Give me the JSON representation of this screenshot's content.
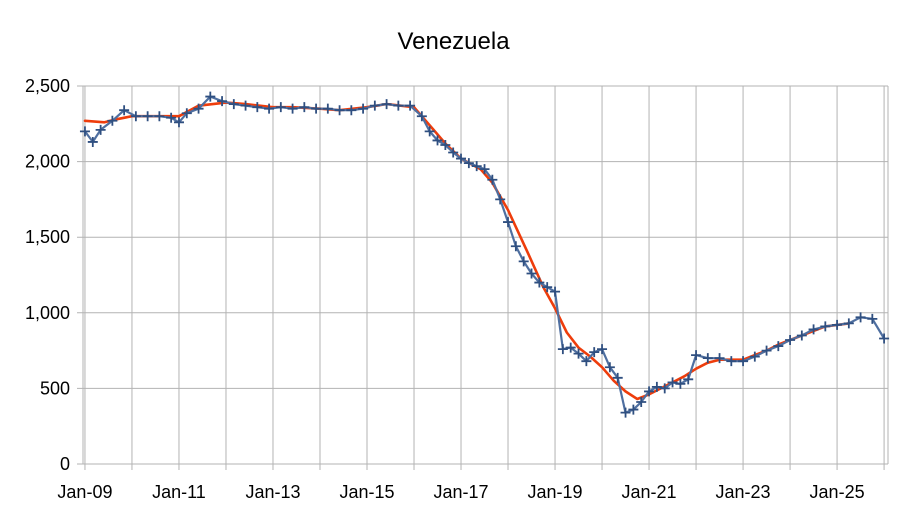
{
  "chart_data": {
    "type": "line",
    "title": "Venezuela",
    "xlabel": "",
    "ylabel": "",
    "ylim": [
      0,
      2500
    ],
    "xlim": [
      "2009-01",
      "2026-02"
    ],
    "grid": true,
    "legend": "none",
    "y_ticks": [
      {
        "value": 0,
        "label": "0"
      },
      {
        "value": 500,
        "label": "500"
      },
      {
        "value": 1000,
        "label": "1,000"
      },
      {
        "value": 1500,
        "label": "1,500"
      },
      {
        "value": 2000,
        "label": "2,000"
      },
      {
        "value": 2500,
        "label": "2,500"
      }
    ],
    "x_ticks": [
      {
        "value": "2009-01",
        "label": "Jan-09"
      },
      {
        "value": "2011-01",
        "label": "Jan-11"
      },
      {
        "value": "2013-01",
        "label": "Jan-13"
      },
      {
        "value": "2015-01",
        "label": "Jan-15"
      },
      {
        "value": "2017-01",
        "label": "Jan-17"
      },
      {
        "value": "2019-01",
        "label": "Jan-19"
      },
      {
        "value": "2021-01",
        "label": "Jan-21"
      },
      {
        "value": "2023-01",
        "label": "Jan-23"
      },
      {
        "value": "2025-01",
        "label": "Jan-25"
      }
    ],
    "series": [
      {
        "color": "#4f6fa0",
        "marker": "plus",
        "points": [
          [
            "2009-01",
            2200
          ],
          [
            "2009-03",
            2130
          ],
          [
            "2009-05",
            2210
          ],
          [
            "2009-08",
            2270
          ],
          [
            "2009-11",
            2340
          ],
          [
            "2010-02",
            2300
          ],
          [
            "2010-05",
            2300
          ],
          [
            "2010-08",
            2300
          ],
          [
            "2010-11",
            2290
          ],
          [
            "2011-01",
            2260
          ],
          [
            "2011-03",
            2320
          ],
          [
            "2011-06",
            2350
          ],
          [
            "2011-09",
            2430
          ],
          [
            "2011-12",
            2400
          ],
          [
            "2012-03",
            2380
          ],
          [
            "2012-06",
            2370
          ],
          [
            "2012-09",
            2360
          ],
          [
            "2012-12",
            2350
          ],
          [
            "2013-03",
            2360
          ],
          [
            "2013-06",
            2350
          ],
          [
            "2013-09",
            2360
          ],
          [
            "2013-12",
            2350
          ],
          [
            "2014-03",
            2350
          ],
          [
            "2014-06",
            2340
          ],
          [
            "2014-09",
            2340
          ],
          [
            "2014-12",
            2350
          ],
          [
            "2015-03",
            2370
          ],
          [
            "2015-06",
            2380
          ],
          [
            "2015-09",
            2370
          ],
          [
            "2015-12",
            2370
          ],
          [
            "2016-03",
            2300
          ],
          [
            "2016-05",
            2200
          ],
          [
            "2016-07",
            2140
          ],
          [
            "2016-09",
            2110
          ],
          [
            "2016-11",
            2060
          ],
          [
            "2017-01",
            2020
          ],
          [
            "2017-03",
            1990
          ],
          [
            "2017-05",
            1970
          ],
          [
            "2017-07",
            1950
          ],
          [
            "2017-09",
            1880
          ],
          [
            "2017-11",
            1750
          ],
          [
            "2018-01",
            1600
          ],
          [
            "2018-03",
            1440
          ],
          [
            "2018-05",
            1340
          ],
          [
            "2018-07",
            1260
          ],
          [
            "2018-09",
            1200
          ],
          [
            "2018-11",
            1170
          ],
          [
            "2019-01",
            1140
          ],
          [
            "2019-03",
            760
          ],
          [
            "2019-05",
            770
          ],
          [
            "2019-07",
            730
          ],
          [
            "2019-09",
            680
          ],
          [
            "2019-11",
            740
          ],
          [
            "2020-01",
            760
          ],
          [
            "2020-03",
            640
          ],
          [
            "2020-05",
            570
          ],
          [
            "2020-07",
            340
          ],
          [
            "2020-09",
            360
          ],
          [
            "2020-11",
            410
          ],
          [
            "2021-01",
            480
          ],
          [
            "2021-03",
            510
          ],
          [
            "2021-05",
            500
          ],
          [
            "2021-07",
            540
          ],
          [
            "2021-09",
            530
          ],
          [
            "2021-11",
            560
          ],
          [
            "2022-01",
            720
          ],
          [
            "2022-04",
            700
          ],
          [
            "2022-07",
            700
          ],
          [
            "2022-10",
            680
          ],
          [
            "2023-01",
            680
          ],
          [
            "2023-04",
            710
          ],
          [
            "2023-07",
            750
          ],
          [
            "2023-10",
            780
          ],
          [
            "2024-01",
            820
          ],
          [
            "2024-04",
            850
          ],
          [
            "2024-07",
            890
          ],
          [
            "2024-10",
            910
          ],
          [
            "2025-01",
            920
          ],
          [
            "2025-04",
            930
          ],
          [
            "2025-07",
            970
          ],
          [
            "2025-10",
            960
          ],
          [
            "2026-01",
            830
          ]
        ]
      },
      {
        "color": "#ee3d0c",
        "marker": "none",
        "points": [
          [
            "2009-01",
            2270
          ],
          [
            "2009-06",
            2260
          ],
          [
            "2009-09",
            2280
          ],
          [
            "2010-01",
            2300
          ],
          [
            "2010-06",
            2300
          ],
          [
            "2011-01",
            2300
          ],
          [
            "2011-06",
            2370
          ],
          [
            "2012-01",
            2390
          ],
          [
            "2012-06",
            2380
          ],
          [
            "2013-01",
            2360
          ],
          [
            "2013-06",
            2360
          ],
          [
            "2014-01",
            2350
          ],
          [
            "2014-06",
            2340
          ],
          [
            "2015-01",
            2360
          ],
          [
            "2015-06",
            2380
          ],
          [
            "2016-01",
            2360
          ],
          [
            "2016-05",
            2240
          ],
          [
            "2016-09",
            2120
          ],
          [
            "2017-01",
            2020
          ],
          [
            "2017-06",
            1950
          ],
          [
            "2017-09",
            1860
          ],
          [
            "2018-01",
            1680
          ],
          [
            "2018-06",
            1400
          ],
          [
            "2018-10",
            1170
          ],
          [
            "2019-01",
            1030
          ],
          [
            "2019-04",
            870
          ],
          [
            "2019-07",
            770
          ],
          [
            "2019-10",
            710
          ],
          [
            "2020-01",
            640
          ],
          [
            "2020-04",
            550
          ],
          [
            "2020-07",
            480
          ],
          [
            "2020-10",
            430
          ],
          [
            "2021-01",
            460
          ],
          [
            "2021-04",
            500
          ],
          [
            "2021-07",
            540
          ],
          [
            "2021-10",
            580
          ],
          [
            "2022-01",
            630
          ],
          [
            "2022-04",
            670
          ],
          [
            "2022-07",
            690
          ],
          [
            "2022-10",
            690
          ],
          [
            "2023-01",
            690
          ],
          [
            "2023-04",
            720
          ],
          [
            "2023-07",
            750
          ],
          [
            "2023-10",
            790
          ],
          [
            "2024-01",
            820
          ],
          [
            "2024-04",
            850
          ],
          [
            "2024-07",
            880
          ],
          [
            "2024-10",
            910
          ],
          [
            "2025-01",
            920
          ],
          [
            "2025-04",
            930
          ]
        ]
      }
    ]
  }
}
